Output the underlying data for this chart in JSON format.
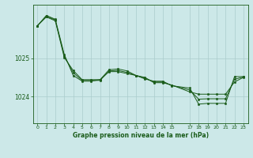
{
  "title": "Graphe pression niveau de la mer (hPa)",
  "bg_color": "#cce8e8",
  "grid_color": "#aacccc",
  "line_color": "#1a5c1a",
  "marker_color": "#1a5c1a",
  "xlim": [
    -0.5,
    23.5
  ],
  "ylim": [
    1023.3,
    1026.4
  ],
  "yticks": [
    1024,
    1025
  ],
  "ytick_labels": [
    "1024",
    "1025"
  ],
  "xtick_positions": [
    0,
    1,
    2,
    3,
    4,
    5,
    6,
    7,
    8,
    9,
    10,
    11,
    12,
    13,
    14,
    15,
    17,
    18,
    19,
    20,
    21,
    22,
    23
  ],
  "xtick_labels": [
    "0",
    "1",
    "2",
    "3",
    "4",
    "5",
    "6",
    "7",
    "8",
    "9",
    "10",
    "11",
    "12",
    "13",
    "14",
    "15",
    "17",
    "18",
    "19",
    "20",
    "21",
    "22",
    "23"
  ],
  "series1_x": [
    0,
    1,
    2,
    3,
    4,
    5,
    6,
    7,
    8,
    9,
    10,
    11,
    12,
    13,
    14,
    15,
    17,
    18,
    19,
    20,
    21,
    22,
    23
  ],
  "series1_y": [
    1025.85,
    1026.08,
    1025.98,
    1025.02,
    1024.68,
    1024.44,
    1024.44,
    1024.44,
    1024.65,
    1024.65,
    1024.6,
    1024.55,
    1024.5,
    1024.36,
    1024.36,
    1024.3,
    1024.12,
    1024.06,
    1024.06,
    1024.06,
    1024.06,
    1024.38,
    1024.5
  ],
  "series2_x": [
    0,
    1,
    2,
    3,
    4,
    5,
    6,
    7,
    8,
    9,
    10,
    11,
    12,
    13,
    14,
    15,
    17,
    18,
    19,
    20,
    21,
    22,
    23
  ],
  "series2_y": [
    1025.85,
    1026.12,
    1026.02,
    1025.1,
    1024.55,
    1024.4,
    1024.4,
    1024.44,
    1024.7,
    1024.72,
    1024.67,
    1024.55,
    1024.46,
    1024.4,
    1024.4,
    1024.28,
    1024.22,
    1023.8,
    1023.82,
    1023.82,
    1023.82,
    1024.52,
    1024.52
  ],
  "series3_x": [
    0,
    1,
    2,
    3,
    4,
    5,
    6,
    7,
    8,
    9,
    10,
    11,
    12,
    13,
    14,
    15,
    17,
    18,
    19,
    20,
    21,
    22,
    23
  ],
  "series3_y": [
    1025.85,
    1026.1,
    1026.0,
    1025.06,
    1024.62,
    1024.42,
    1024.42,
    1024.42,
    1024.67,
    1024.68,
    1024.63,
    1024.55,
    1024.48,
    1024.38,
    1024.38,
    1024.29,
    1024.17,
    1023.93,
    1023.94,
    1023.94,
    1023.94,
    1024.45,
    1024.51
  ]
}
